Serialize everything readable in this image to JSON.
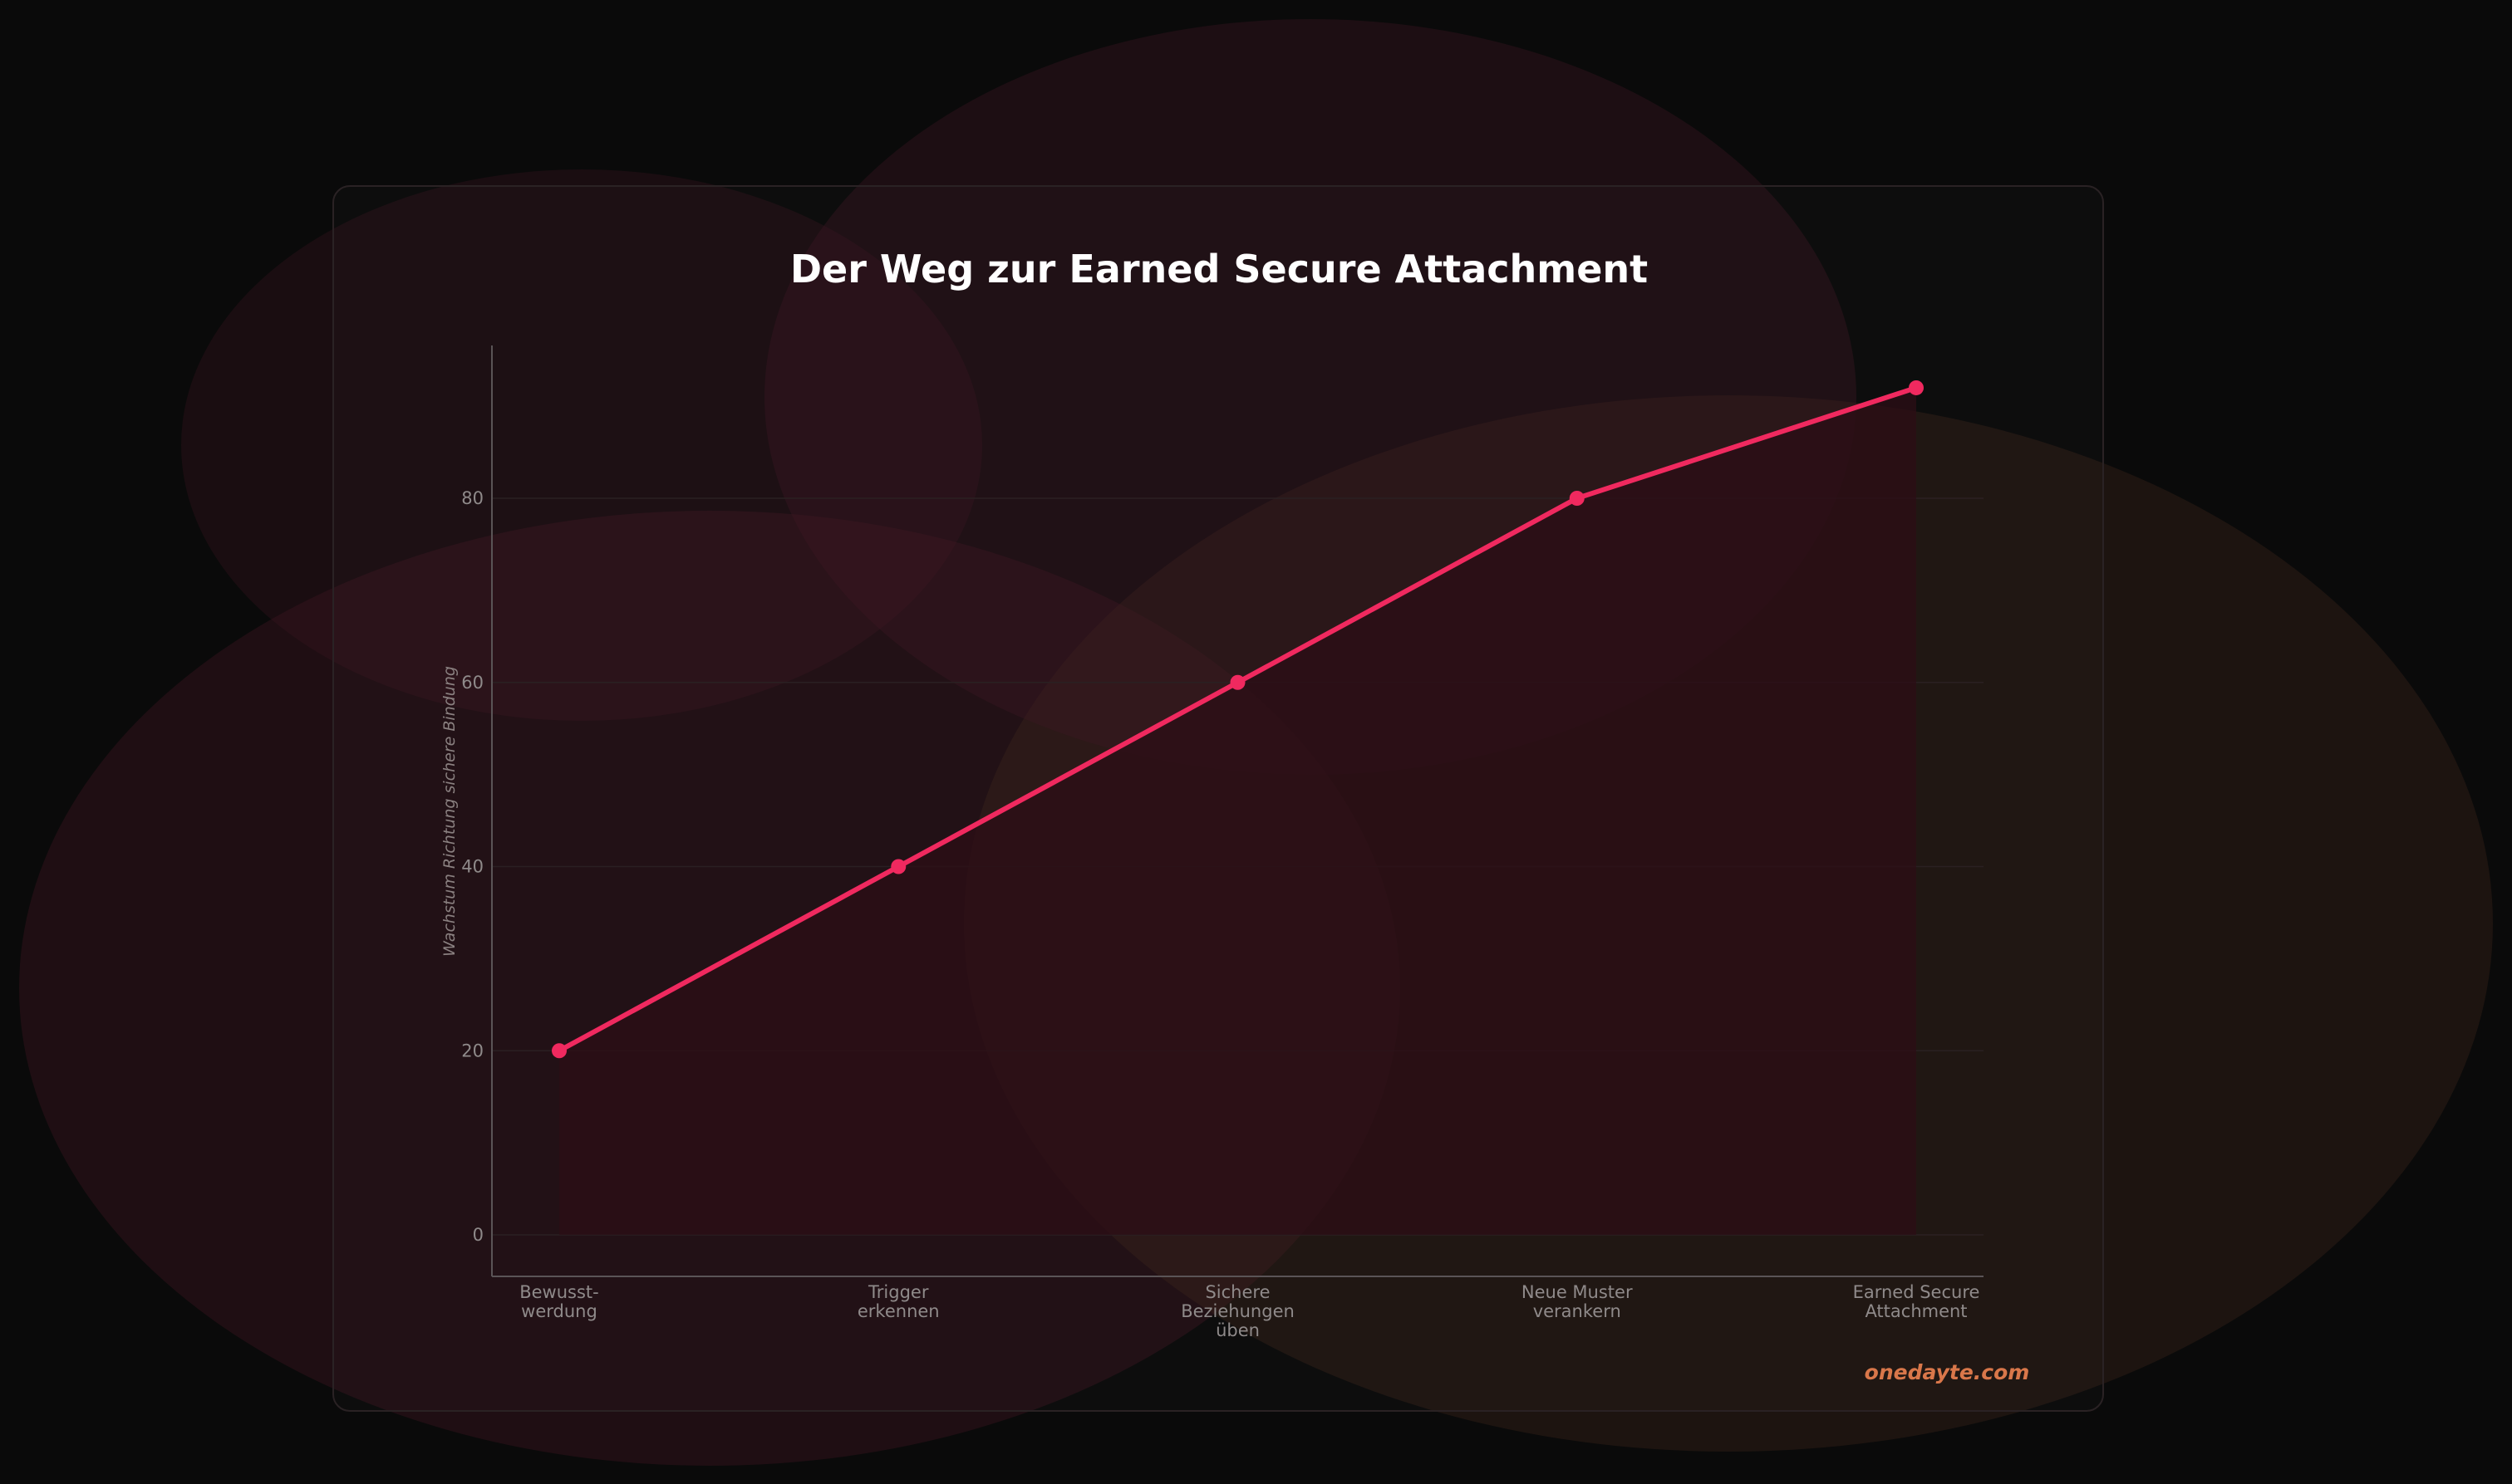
{
  "chart_data": {
    "type": "area",
    "title": "Der Weg zur Earned Secure Attachment",
    "xlabel": "",
    "ylabel": "Wachstum Richtung sichere Bindung",
    "categories": [
      [
        "Bewusst-",
        "werdung"
      ],
      [
        "Trigger",
        "erkennen"
      ],
      [
        "Sichere",
        "Beziehungen",
        "üben"
      ],
      [
        "Neue Muster",
        "verankern"
      ],
      [
        "Earned Secure",
        "Attachment"
      ]
    ],
    "values": [
      20,
      40,
      60,
      80,
      92
    ],
    "yticks": [
      0,
      20,
      40,
      60,
      80
    ],
    "ylim": [
      -4.5,
      96.5
    ],
    "grid": true,
    "legend": "none",
    "colors": {
      "line": "#f0295f",
      "fill": "#2c0d16",
      "background": "#0a0a0a"
    }
  },
  "watermark": "onedayte.com"
}
